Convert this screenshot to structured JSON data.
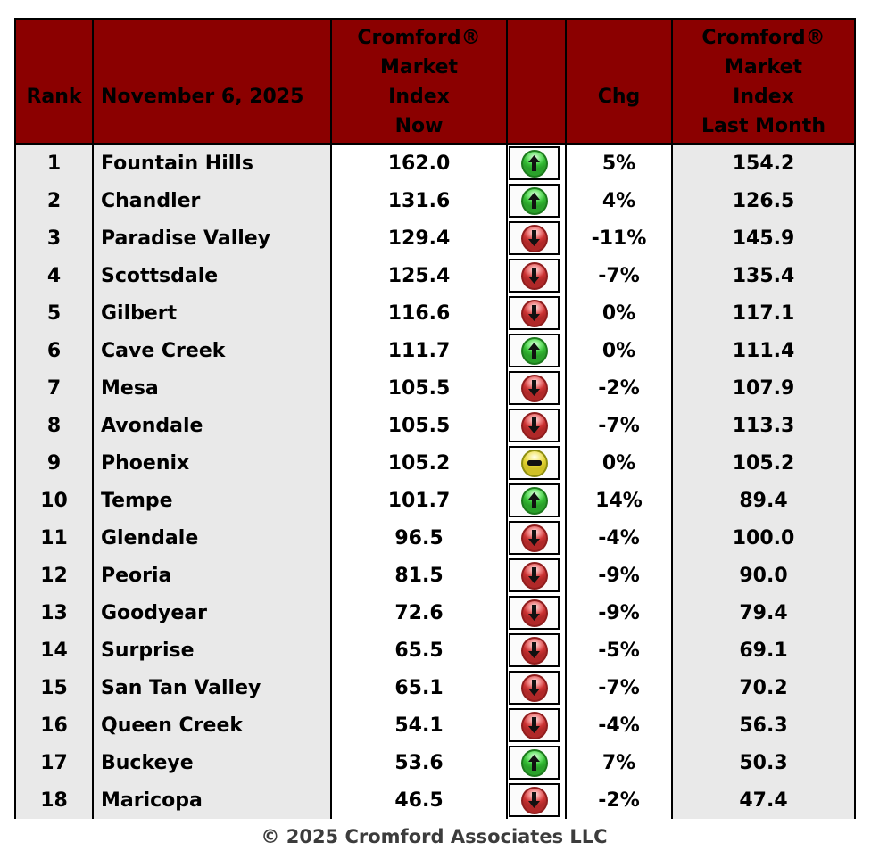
{
  "header": {
    "bg_color": "#8B0000",
    "text_color": "#ffffff",
    "columns": {
      "rank": "Rank",
      "date": "November 6, 2025",
      "index_now": [
        "Cromford®",
        "Market",
        "Index",
        "Now"
      ],
      "trend": "",
      "chg": "Chg",
      "index_last_month": [
        "Cromford®",
        "Market",
        "Index",
        "Last Month"
      ]
    }
  },
  "table": {
    "rows": [
      {
        "rank": "1",
        "city": "Fountain Hills",
        "index_now": "162.0",
        "direction": "up",
        "chg": "5%",
        "index_last_month": "154.2"
      },
      {
        "rank": "2",
        "city": "Chandler",
        "index_now": "131.6",
        "direction": "up",
        "chg": "4%",
        "index_last_month": "126.5"
      },
      {
        "rank": "3",
        "city": "Paradise Valley",
        "index_now": "129.4",
        "direction": "down",
        "chg": "-11%",
        "index_last_month": "145.9"
      },
      {
        "rank": "4",
        "city": "Scottsdale",
        "index_now": "125.4",
        "direction": "down",
        "chg": "-7%",
        "index_last_month": "135.4"
      },
      {
        "rank": "5",
        "city": "Gilbert",
        "index_now": "116.6",
        "direction": "down",
        "chg": "0%",
        "index_last_month": "117.1"
      },
      {
        "rank": "6",
        "city": "Cave Creek",
        "index_now": "111.7",
        "direction": "up",
        "chg": "0%",
        "index_last_month": "111.4"
      },
      {
        "rank": "7",
        "city": "Mesa",
        "index_now": "105.5",
        "direction": "down",
        "chg": "-2%",
        "index_last_month": "107.9"
      },
      {
        "rank": "8",
        "city": "Avondale",
        "index_now": "105.5",
        "direction": "down",
        "chg": "-7%",
        "index_last_month": "113.3"
      },
      {
        "rank": "9",
        "city": "Phoenix",
        "index_now": "105.2",
        "direction": "flat",
        "chg": "0%",
        "index_last_month": "105.2"
      },
      {
        "rank": "10",
        "city": "Tempe",
        "index_now": "101.7",
        "direction": "up",
        "chg": "14%",
        "index_last_month": "89.4"
      },
      {
        "rank": "11",
        "city": "Glendale",
        "index_now": "96.5",
        "direction": "down",
        "chg": "-4%",
        "index_last_month": "100.0"
      },
      {
        "rank": "12",
        "city": "Peoria",
        "index_now": "81.5",
        "direction": "down",
        "chg": "-9%",
        "index_last_month": "90.0"
      },
      {
        "rank": "13",
        "city": "Goodyear",
        "index_now": "72.6",
        "direction": "down",
        "chg": "-9%",
        "index_last_month": "79.4"
      },
      {
        "rank": "14",
        "city": "Surprise",
        "index_now": "65.5",
        "direction": "down",
        "chg": "-5%",
        "index_last_month": "69.1"
      },
      {
        "rank": "15",
        "city": "San Tan Valley",
        "index_now": "65.1",
        "direction": "down",
        "chg": "-7%",
        "index_last_month": "70.2"
      },
      {
        "rank": "16",
        "city": "Queen Creek",
        "index_now": "54.1",
        "direction": "down",
        "chg": "-4%",
        "index_last_month": "56.3"
      },
      {
        "rank": "17",
        "city": "Buckeye",
        "index_now": "53.6",
        "direction": "up",
        "chg": "7%",
        "index_last_month": "50.3"
      },
      {
        "rank": "18",
        "city": "Maricopa",
        "index_now": "46.5",
        "direction": "down",
        "chg": "-2%",
        "index_last_month": "47.4"
      }
    ]
  },
  "icons": {
    "up_color": "#33bb33",
    "down_color": "#cc3333",
    "flat_color": "#e3d335"
  },
  "footer": {
    "copyright": "© 2025 Cromford Associates LLC"
  }
}
